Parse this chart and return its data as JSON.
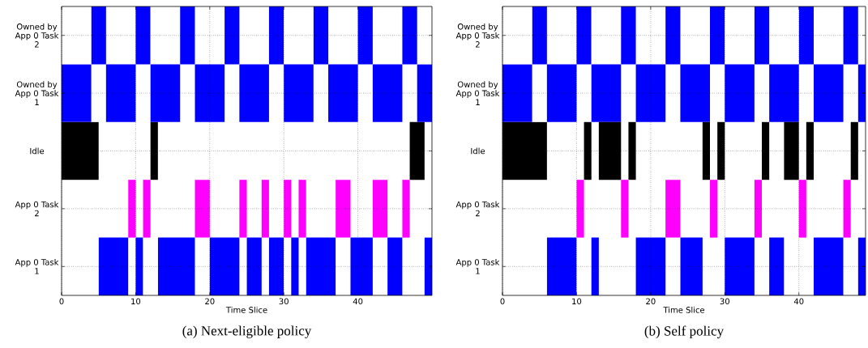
{
  "chart_data": [
    {
      "type": "bar",
      "orientation": "horizontal",
      "title": "(a) Next-eligible policy",
      "xlabel": "Time Slice",
      "categories": [
        "Owned by App 0 Task 2",
        "Owned by App 0 Task 1",
        "Idle",
        "App 0 Task 2",
        "App 0 Task 1"
      ],
      "xlim": [
        0,
        50
      ],
      "xticks": [
        0,
        10,
        20,
        30,
        40
      ],
      "grid": true,
      "series": [
        {
          "colors": [
            "#0000ff",
            "#0000ff",
            "#000000",
            "#ff00ff",
            "#0000ff"
          ],
          "base": [
            4,
            0,
            0,
            9,
            5
          ],
          "values": [
            2,
            4,
            5,
            1,
            4
          ]
        },
        {
          "colors": [
            "#0000ff",
            "#0000ff",
            "#000000",
            "#ff00ff",
            "#0000ff"
          ],
          "base": [
            10,
            6,
            12,
            11,
            10
          ],
          "values": [
            2,
            4,
            1,
            1,
            1
          ]
        },
        {
          "colors": [
            "#0000ff",
            "#0000ff",
            "#000000",
            "#ff00ff",
            "#0000ff"
          ],
          "base": [
            16,
            12,
            47,
            18,
            13
          ],
          "values": [
            2,
            4,
            2,
            2,
            5
          ]
        },
        {
          "colors": [
            "#0000ff",
            "#0000ff",
            "#000000",
            "#ff00ff",
            "#0000ff"
          ],
          "base": [
            22,
            18,
            null,
            24,
            20
          ],
          "values": [
            2,
            4,
            null,
            1,
            4
          ]
        },
        {
          "colors": [
            "#0000ff",
            "#0000ff",
            "#000000",
            "#ff00ff",
            "#0000ff"
          ],
          "base": [
            28,
            24,
            null,
            27,
            25
          ],
          "values": [
            2,
            4,
            null,
            1,
            2
          ]
        },
        {
          "colors": [
            "#0000ff",
            "#0000ff",
            "#000000",
            "#ff00ff",
            "#0000ff"
          ],
          "base": [
            34,
            30,
            null,
            30,
            28
          ],
          "values": [
            2,
            4,
            null,
            1,
            2
          ]
        },
        {
          "colors": [
            "#0000ff",
            "#0000ff",
            "#000000",
            "#ff00ff",
            "#0000ff"
          ],
          "base": [
            40,
            36,
            null,
            32,
            31
          ],
          "values": [
            2,
            4,
            null,
            1,
            1
          ]
        },
        {
          "colors": [
            "#0000ff",
            "#0000ff",
            "#000000",
            "#ff00ff",
            "#0000ff"
          ],
          "base": [
            46,
            42,
            null,
            37,
            33
          ],
          "values": [
            2,
            4,
            null,
            2,
            4
          ]
        },
        {
          "colors": [
            "#0000ff",
            "#0000ff",
            "#000000",
            "#ff00ff",
            "#0000ff"
          ],
          "base": [
            null,
            48,
            null,
            42,
            39
          ],
          "values": [
            null,
            2,
            null,
            2,
            3
          ]
        },
        {
          "colors": [
            "#0000ff",
            "#0000ff",
            "#000000",
            "#ff00ff",
            "#0000ff"
          ],
          "base": [
            null,
            null,
            null,
            46,
            44
          ],
          "values": [
            null,
            null,
            null,
            1,
            2
          ]
        },
        {
          "colors": [
            "#0000ff",
            "#0000ff",
            "#000000",
            "#ff00ff",
            "#0000ff"
          ],
          "base": [
            null,
            null,
            null,
            null,
            49
          ],
          "values": [
            null,
            null,
            null,
            null,
            1
          ]
        }
      ]
    },
    {
      "type": "bar",
      "orientation": "horizontal",
      "title": "(b) Self policy",
      "xlabel": "Time Slice",
      "categories": [
        "Owned by App 0 Task 2",
        "Owned by App 0 Task 1",
        "Idle",
        "App 0 Task 2",
        "App 0 Task 1"
      ],
      "xlim": [
        0,
        49
      ],
      "xticks": [
        0,
        10,
        20,
        30,
        40
      ],
      "grid": true,
      "series": [
        {
          "colors": [
            "#0000ff",
            "#0000ff",
            "#000000",
            "#ff00ff",
            "#0000ff"
          ],
          "base": [
            4,
            0,
            0,
            10,
            6
          ],
          "values": [
            2,
            4,
            6,
            1,
            4
          ]
        },
        {
          "colors": [
            "#0000ff",
            "#0000ff",
            "#000000",
            "#ff00ff",
            "#0000ff"
          ],
          "base": [
            10,
            6,
            11,
            16,
            12
          ],
          "values": [
            2,
            4,
            1,
            1,
            1
          ]
        },
        {
          "colors": [
            "#0000ff",
            "#0000ff",
            "#000000",
            "#ff00ff",
            "#0000ff"
          ],
          "base": [
            16,
            12,
            13,
            22,
            18
          ],
          "values": [
            2,
            4,
            3,
            2,
            4
          ]
        },
        {
          "colors": [
            "#0000ff",
            "#0000ff",
            "#000000",
            "#ff00ff",
            "#0000ff"
          ],
          "base": [
            22,
            18,
            17,
            28,
            24
          ],
          "values": [
            2,
            4,
            1,
            1,
            3
          ]
        },
        {
          "colors": [
            "#0000ff",
            "#0000ff",
            "#000000",
            "#ff00ff",
            "#0000ff"
          ],
          "base": [
            28,
            24,
            27,
            34,
            30
          ],
          "values": [
            2,
            4,
            1,
            1,
            4
          ]
        },
        {
          "colors": [
            "#0000ff",
            "#0000ff",
            "#000000",
            "#ff00ff",
            "#0000ff"
          ],
          "base": [
            34,
            30,
            29,
            40,
            36
          ],
          "values": [
            2,
            4,
            1,
            1,
            2
          ]
        },
        {
          "colors": [
            "#0000ff",
            "#0000ff",
            "#000000",
            "#ff00ff",
            "#0000ff"
          ],
          "base": [
            40,
            36,
            35,
            46,
            42
          ],
          "values": [
            2,
            4,
            1,
            1,
            4
          ]
        },
        {
          "colors": [
            "#0000ff",
            "#0000ff",
            "#000000",
            "#ff00ff",
            "#0000ff"
          ],
          "base": [
            46,
            42,
            38,
            null,
            48
          ],
          "values": [
            2,
            4,
            2,
            null,
            1
          ]
        },
        {
          "colors": [
            "#0000ff",
            "#0000ff",
            "#000000",
            "#ff00ff",
            "#0000ff"
          ],
          "base": [
            null,
            48,
            41,
            null,
            null
          ],
          "values": [
            null,
            1,
            1,
            null,
            null
          ]
        },
        {
          "colors": [
            "#0000ff",
            "#0000ff",
            "#000000",
            "#ff00ff",
            "#0000ff"
          ],
          "base": [
            null,
            null,
            47,
            null,
            null
          ],
          "values": [
            null,
            null,
            1,
            null,
            null
          ]
        }
      ]
    }
  ]
}
